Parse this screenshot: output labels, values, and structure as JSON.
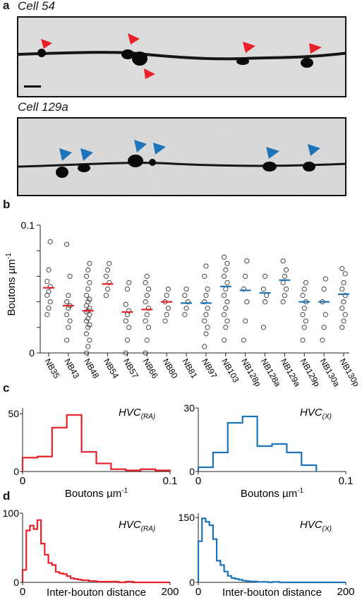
{
  "panel_a": {
    "letter": "a",
    "cell1_title": "Cell 54",
    "cell2_title": "Cell 129a",
    "arrow_colors": {
      "cell1": "#e8202a",
      "cell2": "#1e74b8"
    }
  },
  "panel_b": {
    "letter": "b",
    "ylabel": "Boutons µm",
    "ylabel_sup": "-1",
    "colors": {
      "red": "#e8202a",
      "blue": "#1e74b8"
    }
  },
  "panel_c": {
    "letter": "c",
    "left_label": "HVC",
    "left_sub": "(RA)",
    "right_label": "HVC",
    "right_sub": "(X)",
    "xlabel": "Boutons µm",
    "xlabel_sup": "-1"
  },
  "panel_d": {
    "letter": "d",
    "left_label": "HVC",
    "left_sub": "(RA)",
    "right_label": "HVC",
    "right_sub": "(X)",
    "xlabel": "Inter-bouton distance"
  },
  "chart_data": [
    {
      "type": "scatter",
      "panel": "b",
      "ylabel": "Boutons µm-1",
      "ylim": [
        0,
        0.1
      ],
      "yticks": [
        "0",
        "0.1"
      ],
      "categories": [
        "NB35",
        "NB43",
        "NB48",
        "NB54",
        "NB57",
        "NB66",
        "NB80",
        "NB81",
        "NB97",
        "NB103",
        "NB128p",
        "NB128a",
        "NB129a",
        "NB129p",
        "NB130a",
        "NB130p"
      ],
      "mean_colors": [
        "red",
        "red",
        "red",
        "red",
        "red",
        "red",
        "red",
        "blue",
        "blue",
        "blue",
        "blue",
        "blue",
        "blue",
        "blue",
        "blue",
        "blue"
      ],
      "means": [
        0.051,
        0.037,
        0.033,
        0.054,
        0.032,
        0.034,
        0.04,
        0.039,
        0.039,
        0.052,
        0.049,
        0.047,
        0.057,
        0.04,
        0.04,
        0.046
      ],
      "points": [
        [
          0.03,
          0.035,
          0.04,
          0.045,
          0.048,
          0.052,
          0.056,
          0.065,
          0.087
        ],
        [
          0.01,
          0.02,
          0.025,
          0.03,
          0.035,
          0.037,
          0.04,
          0.045,
          0.06,
          0.085
        ],
        [
          0.0,
          0.005,
          0.01,
          0.015,
          0.02,
          0.022,
          0.025,
          0.027,
          0.03,
          0.032,
          0.033,
          0.035,
          0.037,
          0.04,
          0.042,
          0.045,
          0.05,
          0.055,
          0.06,
          0.065,
          0.07
        ],
        [
          0.045,
          0.05,
          0.055,
          0.06,
          0.065,
          0.07
        ],
        [
          0.0,
          0.01,
          0.02,
          0.025,
          0.03,
          0.033,
          0.038,
          0.05,
          0.055
        ],
        [
          0.0,
          0.01,
          0.02,
          0.025,
          0.03,
          0.035,
          0.04,
          0.045,
          0.05,
          0.055,
          0.06
        ],
        [
          0.025,
          0.03,
          0.035,
          0.04,
          0.045,
          0.05
        ],
        [
          0.03,
          0.035,
          0.04,
          0.045,
          0.05
        ],
        [
          0.005,
          0.015,
          0.02,
          0.025,
          0.03,
          0.035,
          0.04,
          0.045,
          0.05,
          0.06,
          0.068
        ],
        [
          0.01,
          0.02,
          0.025,
          0.03,
          0.035,
          0.04,
          0.045,
          0.05,
          0.055,
          0.06,
          0.065,
          0.07,
          0.075
        ],
        [
          0.01,
          0.025,
          0.04,
          0.05,
          0.06,
          0.072
        ],
        [
          0.02,
          0.04,
          0.045,
          0.05,
          0.06
        ],
        [
          0.04,
          0.045,
          0.05,
          0.055,
          0.06,
          0.065,
          0.072
        ],
        [
          0.01,
          0.02,
          0.025,
          0.03,
          0.035,
          0.04,
          0.045,
          0.05,
          0.055
        ],
        [
          0.01,
          0.02,
          0.03,
          0.04,
          0.05,
          0.058
        ],
        [
          0.02,
          0.025,
          0.03,
          0.035,
          0.04,
          0.045,
          0.05,
          0.055,
          0.062,
          0.066
        ]
      ]
    },
    {
      "type": "histogram",
      "panel": "c-left",
      "series": [
        {
          "name": "HVC(RA)",
          "color": "#e8202a"
        }
      ],
      "bin_edges": [
        0,
        0.01,
        0.02,
        0.03,
        0.04,
        0.05,
        0.06,
        0.07,
        0.08,
        0.09,
        0.1
      ],
      "counts": [
        12,
        13,
        38,
        49,
        17,
        7,
        2,
        1,
        2,
        1
      ],
      "xlim": [
        0,
        0.1
      ],
      "ylim": [
        0,
        55
      ],
      "xticks": [
        "0",
        "0.1"
      ],
      "yticks": [
        "0",
        "50"
      ]
    },
    {
      "type": "histogram",
      "panel": "c-right",
      "series": [
        {
          "name": "HVC(X)",
          "color": "#1e74b8"
        }
      ],
      "bin_edges": [
        0,
        0.01,
        0.02,
        0.03,
        0.04,
        0.05,
        0.06,
        0.07,
        0.08
      ],
      "counts": [
        2,
        9,
        23,
        26,
        12,
        13,
        9,
        3
      ],
      "xlim": [
        0,
        0.1
      ],
      "ylim": [
        0,
        30
      ],
      "xticks": [
        "0",
        "0.1"
      ],
      "yticks": [
        "0",
        "30"
      ]
    },
    {
      "type": "histogram",
      "panel": "d-left",
      "series": [
        {
          "name": "HVC(RA)",
          "color": "#e8202a"
        }
      ],
      "bin_edges": [
        0,
        5,
        10,
        15,
        20,
        25,
        30,
        35,
        40,
        45,
        50,
        55,
        60,
        65,
        70,
        75,
        80,
        85,
        90,
        95,
        100,
        110,
        120,
        130,
        140,
        150,
        160,
        170,
        180,
        190,
        200
      ],
      "counts": [
        18,
        75,
        82,
        77,
        90,
        56,
        40,
        28,
        25,
        15,
        13,
        12,
        9,
        6,
        5,
        4,
        3,
        3,
        2,
        2,
        1,
        1,
        1,
        0,
        1,
        0,
        0,
        0,
        0,
        0
      ],
      "xlim": [
        0,
        200
      ],
      "ylim": [
        0,
        100
      ],
      "xticks": [
        "0",
        "200"
      ],
      "yticks": [
        "0",
        "100"
      ]
    },
    {
      "type": "histogram",
      "panel": "d-right",
      "series": [
        {
          "name": "HVC(X)",
          "color": "#1e74b8"
        }
      ],
      "bin_edges": [
        0,
        5,
        10,
        15,
        20,
        25,
        30,
        35,
        40,
        45,
        50,
        55,
        60,
        65,
        70,
        75,
        80,
        85,
        90,
        95,
        100,
        110,
        120,
        130,
        140,
        150,
        160,
        170,
        180,
        190,
        200
      ],
      "counts": [
        95,
        148,
        140,
        132,
        100,
        50,
        40,
        25,
        15,
        10,
        8,
        6,
        4,
        3,
        2,
        2,
        1,
        1,
        1,
        0,
        1,
        0,
        0,
        0,
        0,
        0,
        0,
        0,
        0,
        0
      ],
      "xlim": [
        0,
        200
      ],
      "ylim": [
        0,
        160
      ],
      "xticks": [
        "0",
        "200"
      ],
      "yticks": [
        "0",
        "150"
      ]
    }
  ]
}
